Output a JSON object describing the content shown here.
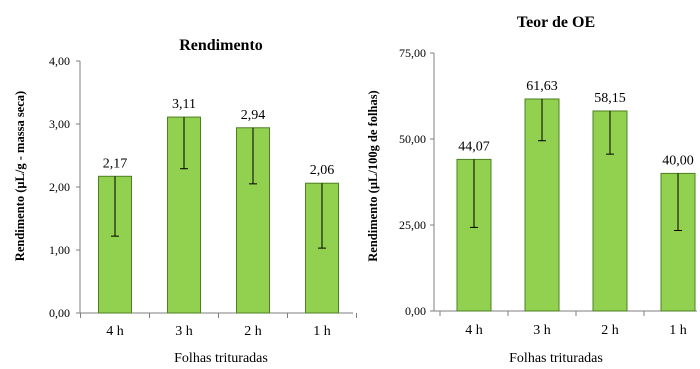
{
  "chart_data": [
    {
      "type": "bar",
      "title": "Rendimento",
      "ylabel": "Rendimento (µL/g - massa seca)",
      "xlabel": "Folhas trituradas",
      "categories": [
        "4 h",
        "3 h",
        "2 h",
        "1 h"
      ],
      "values": [
        2.17,
        3.11,
        2.94,
        2.06
      ],
      "value_labels": [
        "2,17",
        "3,11",
        "2,94",
        "2,06"
      ],
      "error_low": [
        1.22,
        2.29,
        2.05,
        1.03
      ],
      "error_high": [
        2.17,
        3.11,
        2.94,
        2.06
      ],
      "ylim": [
        0,
        4
      ],
      "yticks": [
        0,
        1,
        2,
        3,
        4
      ],
      "ytick_labels": [
        "0,00",
        "1,00",
        "2,00",
        "3,00",
        "4,00"
      ],
      "bar_color": "#92D050",
      "bar_edge_color": "#4E7F22",
      "grid": false
    },
    {
      "type": "bar",
      "title": "Teor de OE",
      "ylabel": "Rendimento (µL/100g de folhas)",
      "xlabel": "Folhas trituradas",
      "categories": [
        "4 h",
        "3 h",
        "2 h",
        "1 h"
      ],
      "values": [
        44.07,
        61.63,
        58.15,
        40.0
      ],
      "value_labels": [
        "44,07",
        "61,63",
        "58,15",
        "40,00"
      ],
      "error_low": [
        24.3,
        49.5,
        45.6,
        23.4
      ],
      "error_high": [
        44.07,
        61.63,
        58.15,
        40.0
      ],
      "ylim": [
        0,
        75
      ],
      "yticks": [
        0,
        25,
        50,
        75
      ],
      "ytick_labels": [
        "0,00",
        "25,00",
        "50,00",
        "75,00"
      ],
      "bar_color": "#92D050",
      "bar_edge_color": "#4E7F22",
      "grid": false
    }
  ]
}
